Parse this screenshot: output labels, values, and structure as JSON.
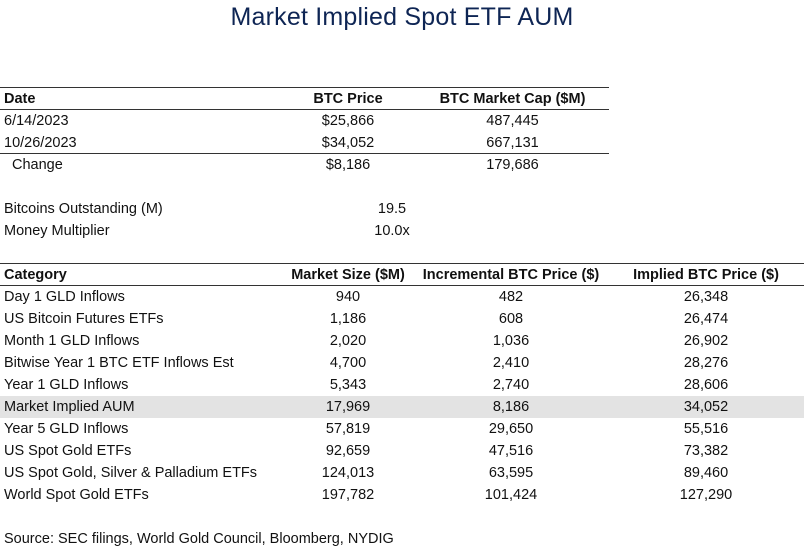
{
  "title": "Market Implied Spot ETF AUM",
  "btc_table": {
    "headers": {
      "date": "Date",
      "price": "BTC Price",
      "market_cap": "BTC Market Cap ($M)"
    },
    "rows": [
      {
        "date": "6/14/2023",
        "price": "$25,866",
        "market_cap": "487,445"
      },
      {
        "date": "10/26/2023",
        "price": "$34,052",
        "market_cap": "667,131"
      }
    ],
    "change": {
      "label": "Change",
      "price": "$8,186",
      "market_cap": "179,686"
    }
  },
  "assumptions": [
    {
      "label": "Bitcoins Outstanding  (M)",
      "value": "19.5"
    },
    {
      "label": "Money Multiplier",
      "value": "10.0x"
    }
  ],
  "category_table": {
    "headers": {
      "category": "Category",
      "market_size": "Market Size ($M)",
      "incremental": "Incremental BTC Price ($)",
      "implied": "Implied BTC Price ($)"
    },
    "rows": [
      {
        "category": "Day 1 GLD Inflows",
        "market_size": "940",
        "incremental": "482",
        "implied": "26,348"
      },
      {
        "category": "US Bitcoin Futures ETFs",
        "market_size": "1,186",
        "incremental": "608",
        "implied": "26,474"
      },
      {
        "category": "Month 1 GLD Inflows",
        "market_size": "2,020",
        "incremental": "1,036",
        "implied": "26,902"
      },
      {
        "category": "Bitwise Year 1 BTC ETF Inflows Est",
        "market_size": "4,700",
        "incremental": "2,410",
        "implied": "28,276"
      },
      {
        "category": "Year 1 GLD Inflows",
        "market_size": "5,343",
        "incremental": "2,740",
        "implied": "28,606"
      },
      {
        "category": "Market Implied AUM",
        "market_size": "17,969",
        "incremental": "8,186",
        "implied": "34,052"
      },
      {
        "category": "Year 5 GLD Inflows",
        "market_size": "57,819",
        "incremental": "29,650",
        "implied": "55,516"
      },
      {
        "category": "US Spot Gold ETFs",
        "market_size": "92,659",
        "incremental": "47,516",
        "implied": "73,382"
      },
      {
        "category": "US Spot Gold, Silver & Palladium ETFs",
        "market_size": "124,013",
        "incremental": "63,595",
        "implied": "89,460"
      },
      {
        "category": "World Spot Gold ETFs",
        "market_size": "197,782",
        "incremental": "101,424",
        "implied": "127,290"
      }
    ]
  },
  "source": "Source: SEC filings, World Gold Council, Bloomberg, NYDIG"
}
